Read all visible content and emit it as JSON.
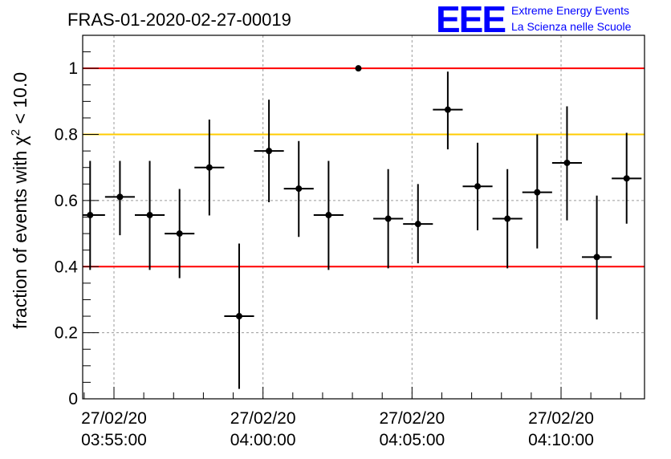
{
  "chart_data": {
    "type": "scatter",
    "title": "FRAS-01-2020-02-27-00019",
    "logo": {
      "mark": "EEE",
      "line1": "Extreme Energy Events",
      "line2": "La Scienza nelle Scuole"
    },
    "ylabel_prefix": "fraction of events with ",
    "ylabel_symbol": "χ",
    "ylabel_exp": "2",
    "ylabel_suffix": " < 10.0",
    "ylim": [
      0,
      1.1
    ],
    "yticks": [
      {
        "value": 0,
        "label": "0"
      },
      {
        "value": 0.2,
        "label": "0.2"
      },
      {
        "value": 0.4,
        "label": "0.4"
      },
      {
        "value": 0.6,
        "label": "0.6"
      },
      {
        "value": 0.8,
        "label": "0.8"
      },
      {
        "value": 1,
        "label": "1"
      }
    ],
    "xlim_minutes": [
      -1.05,
      17.8
    ],
    "xticks": [
      {
        "minute": 0,
        "date": "27/02/20",
        "time": "03:55:00"
      },
      {
        "minute": 5,
        "date": "27/02/20",
        "time": "04:00:00"
      },
      {
        "minute": 10,
        "date": "27/02/20",
        "time": "04:05:00"
      },
      {
        "minute": 15,
        "date": "27/02/20",
        "time": "04:10:00"
      }
    ],
    "grid": true,
    "reference_lines": [
      {
        "y": 1.0,
        "color": "#ff0000"
      },
      {
        "y": 0.8,
        "color": "#ffcc00"
      },
      {
        "y": 0.4,
        "color": "#ff0000"
      }
    ],
    "points": [
      {
        "x": -0.8,
        "y": 0.556,
        "xerr": 0.5,
        "ylo": 0.39,
        "yhi": 0.72
      },
      {
        "x": 0.2,
        "y": 0.611,
        "xerr": 0.5,
        "ylo": 0.495,
        "yhi": 0.72
      },
      {
        "x": 1.2,
        "y": 0.556,
        "xerr": 0.5,
        "ylo": 0.39,
        "yhi": 0.72
      },
      {
        "x": 2.2,
        "y": 0.5,
        "xerr": 0.5,
        "ylo": 0.365,
        "yhi": 0.635
      },
      {
        "x": 3.2,
        "y": 0.7,
        "xerr": 0.5,
        "ylo": 0.555,
        "yhi": 0.845
      },
      {
        "x": 4.2,
        "y": 0.25,
        "xerr": 0.5,
        "ylo": 0.03,
        "yhi": 0.47
      },
      {
        "x": 5.2,
        "y": 0.75,
        "xerr": 0.5,
        "ylo": 0.595,
        "yhi": 0.905
      },
      {
        "x": 6.2,
        "y": 0.636,
        "xerr": 0.5,
        "ylo": 0.49,
        "yhi": 0.78
      },
      {
        "x": 7.2,
        "y": 0.556,
        "xerr": 0.5,
        "ylo": 0.39,
        "yhi": 0.72
      },
      {
        "x": 8.2,
        "y": 1.0,
        "xerr": 0,
        "ylo": 1.0,
        "yhi": 1.0
      },
      {
        "x": 9.2,
        "y": 0.545,
        "xerr": 0.5,
        "ylo": 0.395,
        "yhi": 0.695
      },
      {
        "x": 10.2,
        "y": 0.529,
        "xerr": 0.5,
        "ylo": 0.41,
        "yhi": 0.65
      },
      {
        "x": 11.2,
        "y": 0.875,
        "xerr": 0.5,
        "ylo": 0.755,
        "yhi": 0.99
      },
      {
        "x": 12.2,
        "y": 0.643,
        "xerr": 0.5,
        "ylo": 0.51,
        "yhi": 0.775
      },
      {
        "x": 13.2,
        "y": 0.545,
        "xerr": 0.5,
        "ylo": 0.395,
        "yhi": 0.695
      },
      {
        "x": 14.2,
        "y": 0.625,
        "xerr": 0.5,
        "ylo": 0.455,
        "yhi": 0.8
      },
      {
        "x": 15.2,
        "y": 0.714,
        "xerr": 0.5,
        "ylo": 0.54,
        "yhi": 0.885
      },
      {
        "x": 16.2,
        "y": 0.429,
        "xerr": 0.5,
        "ylo": 0.24,
        "yhi": 0.615
      },
      {
        "x": 17.2,
        "y": 0.667,
        "xerr": 0.5,
        "ylo": 0.53,
        "yhi": 0.805
      }
    ]
  }
}
